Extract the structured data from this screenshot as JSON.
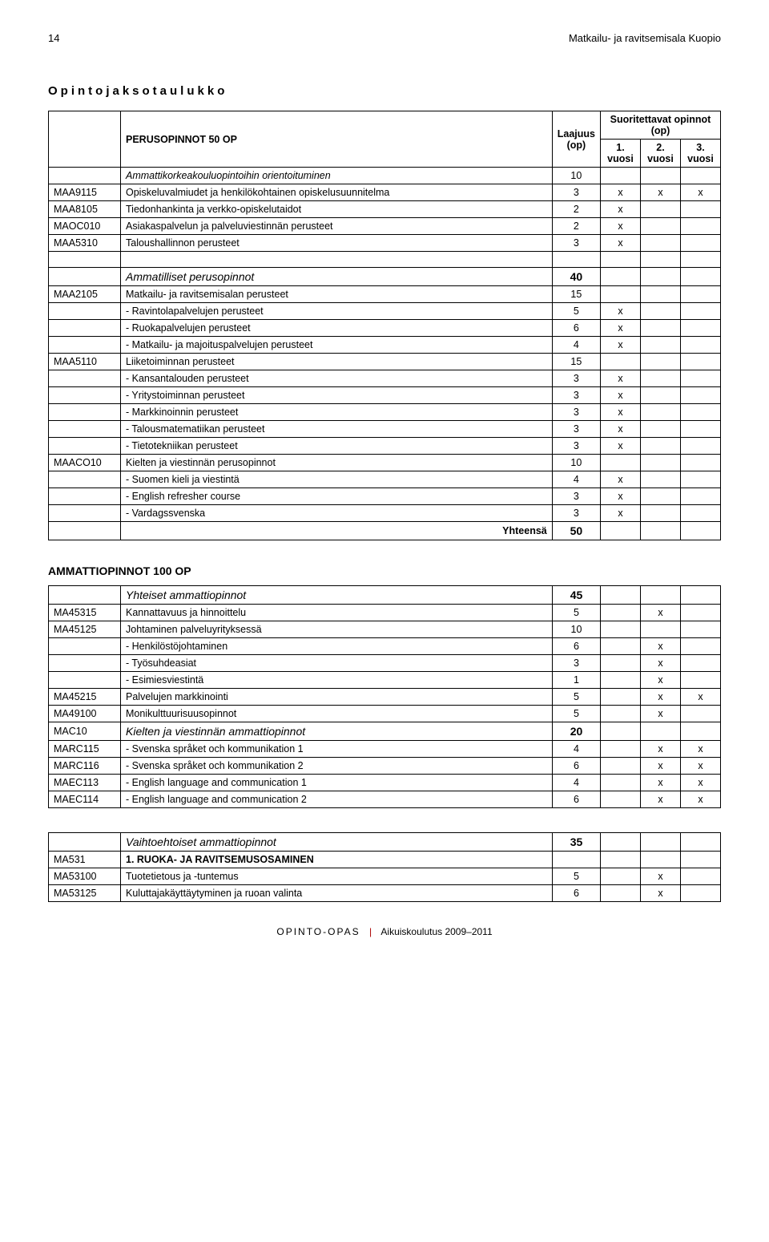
{
  "header": {
    "page_number": "14",
    "title": "Matkailu- ja ravitsemisala Kuopio"
  },
  "section_title": "Opintojaksotaulukko",
  "table1": {
    "header": {
      "suorit": "Suoritettavat opinnot (op)",
      "perus": "PERUSOPINNOT 50 OP",
      "laajuus": "Laajuus (op)",
      "y1": "1. vuosi",
      "y2": "2. vuosi",
      "y3": "3. vuosi"
    },
    "rows": [
      {
        "code": "",
        "desc": "Ammattikorkeakouluopintoihin orientoituminen",
        "op": "10",
        "y1": "",
        "y2": "",
        "y3": "",
        "italic": true
      },
      {
        "code": "MAA9115",
        "desc": "Opiskeluvalmiudet ja henkilökohtainen opiskelusuunnitelma",
        "op": "3",
        "y1": "x",
        "y2": "x",
        "y3": "x"
      },
      {
        "code": "MAA8105",
        "desc": "Tiedonhankinta ja verkko-opiskelutaidot",
        "op": "2",
        "y1": "x",
        "y2": "",
        "y3": ""
      },
      {
        "code": "MAOC010",
        "desc": "Asiakaspalvelun ja palveluviestinnän perusteet",
        "op": "2",
        "y1": "x",
        "y2": "",
        "y3": ""
      },
      {
        "code": "MAA5310",
        "desc": "Taloushallinnon perusteet",
        "op": "3",
        "y1": "x",
        "y2": "",
        "y3": ""
      },
      {
        "blank": true
      },
      {
        "code": "",
        "desc": "Ammatilliset perusopinnot",
        "op": "40",
        "italic": true,
        "big": true
      },
      {
        "code": "MAA2105",
        "desc": "Matkailu- ja ravitsemisalan perusteet",
        "op": "15",
        "y1": "",
        "y2": "",
        "y3": ""
      },
      {
        "code": "",
        "desc": "- Ravintolapalvelujen perusteet",
        "op": "5",
        "y1": "x",
        "y2": "",
        "y3": ""
      },
      {
        "code": "",
        "desc": "- Ruokapalvelujen perusteet",
        "op": "6",
        "y1": "x",
        "y2": "",
        "y3": ""
      },
      {
        "code": "",
        "desc": "- Matkailu- ja majoituspalvelujen perusteet",
        "op": "4",
        "y1": "x",
        "y2": "",
        "y3": ""
      },
      {
        "code": "MAA5110",
        "desc": "Liiketoiminnan perusteet",
        "op": "15",
        "y1": "",
        "y2": "",
        "y3": ""
      },
      {
        "code": "",
        "desc": "- Kansantalouden perusteet",
        "op": "3",
        "y1": "x",
        "y2": "",
        "y3": ""
      },
      {
        "code": "",
        "desc": "- Yritystoiminnan perusteet",
        "op": "3",
        "y1": "x",
        "y2": "",
        "y3": ""
      },
      {
        "code": "",
        "desc": "- Markkinoinnin perusteet",
        "op": "3",
        "y1": "x",
        "y2": "",
        "y3": ""
      },
      {
        "code": "",
        "desc": "- Talousmatematiikan perusteet",
        "op": "3",
        "y1": "x",
        "y2": "",
        "y3": ""
      },
      {
        "code": "",
        "desc": "- Tietotekniikan perusteet",
        "op": "3",
        "y1": "x",
        "y2": "",
        "y3": ""
      },
      {
        "code": "MAACO10",
        "desc": "Kielten ja viestinnän perusopinnot",
        "op": "10",
        "y1": "",
        "y2": "",
        "y3": ""
      },
      {
        "code": "",
        "desc": "- Suomen kieli ja viestintä",
        "op": "4",
        "y1": "x",
        "y2": "",
        "y3": ""
      },
      {
        "code": "",
        "desc": "- English refresher course",
        "op": "3",
        "y1": "x",
        "y2": "",
        "y3": ""
      },
      {
        "code": "",
        "desc": "- Vardagssvenska",
        "op": "3",
        "y1": "x",
        "y2": "",
        "y3": ""
      }
    ],
    "total_label": "Yhteensä",
    "total_value": "50"
  },
  "subsection": "AMMATTIOPINNOT 100 OP",
  "table2": {
    "rows": [
      {
        "code": "",
        "desc": "Yhteiset ammattiopinnot",
        "op": "45",
        "italic": true,
        "big": true
      },
      {
        "code": "MA45315",
        "desc": "Kannattavuus ja hinnoittelu",
        "op": "5",
        "y1": "",
        "y2": "x",
        "y3": ""
      },
      {
        "code": "MA45125",
        "desc": "Johtaminen palveluyrityksessä",
        "op": "10",
        "y1": "",
        "y2": "",
        "y3": ""
      },
      {
        "code": "",
        "desc": "- Henkilöstöjohtaminen",
        "op": "6",
        "y1": "",
        "y2": "x",
        "y3": ""
      },
      {
        "code": "",
        "desc": "- Työsuhdeasiat",
        "op": "3",
        "y1": "",
        "y2": "x",
        "y3": ""
      },
      {
        "code": "",
        "desc": "- Esimiesviestintä",
        "op": "1",
        "y1": "",
        "y2": "x",
        "y3": ""
      },
      {
        "code": "MA45215",
        "desc": "Palvelujen markkinointi",
        "op": "5",
        "y1": "",
        "y2": "x",
        "y3": "x"
      },
      {
        "code": "MA49100",
        "desc": "Monikulttuurisuusopinnot",
        "op": "5",
        "y1": "",
        "y2": "x",
        "y3": ""
      },
      {
        "code": "MAC10",
        "desc": "Kielten ja viestinnän ammattiopinnot",
        "op": "20",
        "italic": true,
        "big": true
      },
      {
        "code": "MARC115",
        "desc": "- Svenska språket och kommunikation 1",
        "op": "4",
        "y1": "",
        "y2": "x",
        "y3": "x"
      },
      {
        "code": "MARC116",
        "desc": "- Svenska språket och kommunikation 2",
        "op": "6",
        "y1": "",
        "y2": "x",
        "y3": "x"
      },
      {
        "code": "MAEC113",
        "desc": "- English language and communication 1",
        "op": "4",
        "y1": "",
        "y2": "x",
        "y3": "x",
        "yx": "x"
      },
      {
        "code": "MAEC114",
        "desc": "- English language and communication 2",
        "op": "6",
        "y1": "",
        "y2": "x",
        "y3": "x",
        "yx": "x"
      }
    ]
  },
  "table3": {
    "rows": [
      {
        "code": "",
        "desc": "Vaihtoehtoiset ammattiopinnot",
        "op": "35",
        "italic": true,
        "big": true
      },
      {
        "code": "MA531",
        "desc": "1. RUOKA- JA RAVITSEMUSOSAMINEN",
        "op": "",
        "bold": true
      },
      {
        "code": "MA53100",
        "desc": "Tuotetietous ja -tuntemus",
        "op": "5",
        "y1": "",
        "y2": "x",
        "y3": ""
      },
      {
        "code": "MA53125",
        "desc": "Kuluttajakäyttäytyminen ja ruoan valinta",
        "op": "6",
        "y1": "",
        "y2": "x",
        "y3": ""
      }
    ]
  },
  "footer": {
    "left": "OPINTO-OPAS",
    "right": "Aikuiskoulutus 2009–2011"
  }
}
